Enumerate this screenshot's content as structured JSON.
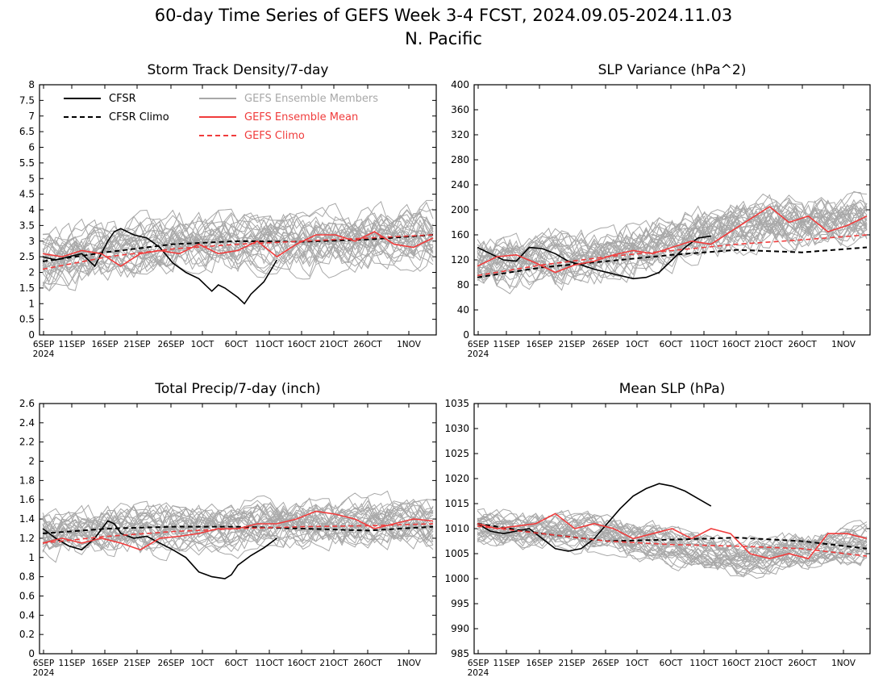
{
  "title_line1": "60-day Time Series of GEFS Week 3-4 FCST, 2024.09.05-2024.11.03",
  "title_line2": "N. Pacific",
  "colors": {
    "cfsr": "#000000",
    "cfsr_climo": "#000000",
    "members": "#a8a8a8",
    "ens_mean": "#f03c3c",
    "gefs_climo": "#f03c3c"
  },
  "legend": {
    "cfsr": "CFSR",
    "cfsr_climo": "CFSR Climo",
    "members": "GEFS Ensemble Members",
    "ens_mean": "GEFS Ensemble Mean",
    "gefs_climo": "GEFS Climo"
  },
  "x_ticks": [
    "6SEP",
    "11SEP",
    "16SEP",
    "21SEP",
    "26SEP",
    "1OCT",
    "6OCT",
    "11OCT",
    "16OCT",
    "21OCT",
    "26OCT",
    "1NOV"
  ],
  "x_year": "2024",
  "chart_data": [
    {
      "type": "line",
      "title": "Storm Track Density/7-day",
      "x_days_since_sep5": [
        0,
        60
      ],
      "ylim": [
        0,
        8
      ],
      "yticks": [
        "0",
        "0.5",
        "1",
        "1.5",
        "2",
        "2.5",
        "3",
        "3.5",
        "4",
        "4.5",
        "5",
        "5.5",
        "6",
        "6.5",
        "7",
        "7.5",
        "8"
      ],
      "members": {
        "count": 30,
        "center": [
          2.4,
          3.0,
          3.0,
          3.2
        ],
        "spread": 1.3,
        "note": "spread estimate"
      },
      "series": [
        {
          "name": "CFSR",
          "x": [
            0,
            2,
            4,
            6,
            8,
            9,
            10,
            11,
            12,
            14,
            16,
            18,
            20,
            22,
            24,
            26,
            27,
            28,
            30,
            31,
            32,
            34,
            36
          ],
          "y": [
            2.5,
            2.4,
            2.5,
            2.6,
            2.2,
            2.6,
            3.0,
            3.3,
            3.4,
            3.2,
            3.1,
            2.8,
            2.3,
            2.0,
            1.8,
            1.4,
            1.6,
            1.5,
            1.2,
            1.0,
            1.3,
            1.7,
            2.4
          ]
        },
        {
          "name": "CFSR Climo",
          "x": [
            0,
            10,
            20,
            30,
            40,
            50,
            60
          ],
          "y": [
            2.35,
            2.65,
            2.9,
            3.0,
            2.98,
            3.05,
            3.2
          ]
        },
        {
          "name": "GEFS Ensemble Mean",
          "x": [
            0,
            3,
            6,
            9,
            12,
            15,
            18,
            21,
            24,
            27,
            30,
            33,
            36,
            39,
            42,
            45,
            48,
            51,
            54,
            57,
            60
          ],
          "y": [
            2.6,
            2.5,
            2.7,
            2.6,
            2.2,
            2.6,
            2.7,
            2.6,
            2.9,
            2.6,
            2.7,
            3.0,
            2.5,
            2.9,
            3.2,
            3.2,
            3.0,
            3.3,
            2.9,
            2.8,
            3.1
          ]
        },
        {
          "name": "GEFS Climo",
          "x": [
            0,
            10,
            20,
            30,
            40,
            50,
            60
          ],
          "y": [
            2.1,
            2.5,
            2.75,
            2.9,
            3.0,
            3.1,
            3.2
          ]
        }
      ]
    },
    {
      "type": "line",
      "title": "SLP Variance (hPa^2)",
      "x_days_since_sep5": [
        0,
        60
      ],
      "ylim": [
        0,
        400
      ],
      "yticks": [
        "0",
        "40",
        "80",
        "120",
        "160",
        "200",
        "240",
        "280",
        "320",
        "360",
        "400"
      ],
      "members": {
        "count": 30,
        "center": [
          115,
          130,
          175,
          185
        ],
        "spread": 60,
        "note": "spread estimate"
      },
      "series": [
        {
          "name": "CFSR",
          "x": [
            0,
            2,
            4,
            6,
            8,
            10,
            12,
            14,
            16,
            18,
            20,
            22,
            24,
            26,
            28,
            30,
            32,
            34,
            36
          ],
          "y": [
            140,
            130,
            120,
            118,
            140,
            138,
            130,
            118,
            112,
            105,
            100,
            95,
            90,
            92,
            100,
            120,
            140,
            155,
            158
          ]
        },
        {
          "name": "CFSR Climo",
          "x": [
            0,
            10,
            20,
            30,
            40,
            50,
            60
          ],
          "y": [
            92,
            108,
            118,
            128,
            136,
            132,
            140
          ]
        },
        {
          "name": "GEFS Ensemble Mean",
          "x": [
            0,
            3,
            6,
            9,
            12,
            15,
            18,
            21,
            24,
            27,
            30,
            33,
            36,
            39,
            42,
            45,
            48,
            51,
            54,
            57,
            60
          ],
          "y": [
            110,
            125,
            128,
            115,
            100,
            112,
            118,
            128,
            135,
            130,
            140,
            150,
            145,
            165,
            185,
            205,
            180,
            190,
            165,
            175,
            190
          ]
        },
        {
          "name": "GEFS Climo",
          "x": [
            0,
            10,
            20,
            30,
            40,
            50,
            60
          ],
          "y": [
            95,
            112,
            125,
            135,
            145,
            152,
            160
          ]
        }
      ]
    },
    {
      "type": "line",
      "title": "Total Precip/7-day (inch)",
      "x_days_since_sep5": [
        0,
        60
      ],
      "ylim": [
        0,
        2.6
      ],
      "yticks": [
        "0",
        "0.2",
        "0.4",
        "0.6",
        "0.8",
        "1",
        "1.2",
        "1.4",
        "1.6",
        "1.8",
        "2",
        "2.2",
        "2.4",
        "2.6"
      ],
      "members": {
        "count": 30,
        "center": [
          1.25,
          1.3,
          1.35,
          1.35
        ],
        "spread": 0.35,
        "note": "spread estimate"
      },
      "series": [
        {
          "name": "CFSR",
          "x": [
            0,
            2,
            4,
            6,
            8,
            10,
            11,
            12,
            14,
            16,
            18,
            20,
            22,
            24,
            26,
            28,
            29,
            30,
            32,
            34,
            36
          ],
          "y": [
            1.3,
            1.2,
            1.12,
            1.08,
            1.2,
            1.38,
            1.35,
            1.25,
            1.2,
            1.22,
            1.15,
            1.08,
            1.0,
            0.85,
            0.8,
            0.78,
            0.82,
            0.92,
            1.02,
            1.1,
            1.2
          ]
        },
        {
          "name": "CFSR Climo",
          "x": [
            0,
            10,
            20,
            30,
            40,
            50,
            60
          ],
          "y": [
            1.25,
            1.3,
            1.32,
            1.32,
            1.3,
            1.28,
            1.32
          ]
        },
        {
          "name": "GEFS Ensemble Mean",
          "x": [
            0,
            3,
            6,
            9,
            12,
            15,
            18,
            21,
            24,
            27,
            30,
            33,
            36,
            39,
            42,
            45,
            48,
            51,
            54,
            57,
            60
          ],
          "y": [
            1.15,
            1.2,
            1.15,
            1.2,
            1.15,
            1.08,
            1.2,
            1.22,
            1.25,
            1.3,
            1.3,
            1.35,
            1.35,
            1.4,
            1.48,
            1.45,
            1.4,
            1.3,
            1.35,
            1.4,
            1.38
          ]
        },
        {
          "name": "GEFS Climo",
          "x": [
            0,
            10,
            20,
            30,
            40,
            50,
            60
          ],
          "y": [
            1.15,
            1.22,
            1.27,
            1.3,
            1.32,
            1.33,
            1.35
          ]
        }
      ]
    },
    {
      "type": "line",
      "title": "Mean SLP (hPa)",
      "x_days_since_sep5": [
        0,
        60
      ],
      "ylim": [
        985,
        1035
      ],
      "yticks": [
        "985",
        "990",
        "995",
        "1000",
        "1005",
        "1010",
        "1015",
        "1020",
        "1025",
        "1030",
        "1035"
      ],
      "members": {
        "count": 30,
        "center": [
          1010,
          1009,
          1004,
          1007
        ],
        "spread": 5,
        "note": "spread estimate"
      },
      "series": [
        {
          "name": "CFSR",
          "x": [
            0,
            2,
            4,
            6,
            8,
            10,
            12,
            14,
            16,
            18,
            20,
            22,
            24,
            26,
            28,
            30,
            32,
            34,
            36
          ],
          "y": [
            1011,
            1009.5,
            1009,
            1009.5,
            1010,
            1008,
            1006,
            1005.5,
            1006,
            1008,
            1011,
            1014,
            1016.5,
            1018,
            1019,
            1018.5,
            1017.5,
            1016,
            1014.5
          ]
        },
        {
          "name": "CFSR Climo",
          "x": [
            0,
            10,
            20,
            30,
            40,
            50,
            60
          ],
          "y": [
            1011,
            1009,
            1007.5,
            1007.8,
            1008.2,
            1007.5,
            1006
          ]
        },
        {
          "name": "GEFS Ensemble Mean",
          "x": [
            0,
            3,
            6,
            9,
            12,
            15,
            18,
            21,
            24,
            27,
            30,
            33,
            36,
            39,
            42,
            45,
            48,
            51,
            54,
            57,
            60
          ],
          "y": [
            1011,
            1010,
            1010.5,
            1011,
            1013,
            1010,
            1011,
            1010,
            1008,
            1009,
            1010,
            1008,
            1010,
            1009,
            1005,
            1004,
            1005,
            1004,
            1009,
            1009,
            1008
          ]
        },
        {
          "name": "GEFS Climo",
          "x": [
            0,
            10,
            20,
            30,
            40,
            50,
            60
          ],
          "y": [
            1010.5,
            1009,
            1007.5,
            1006.8,
            1006.5,
            1006,
            1004.5
          ]
        }
      ]
    }
  ]
}
